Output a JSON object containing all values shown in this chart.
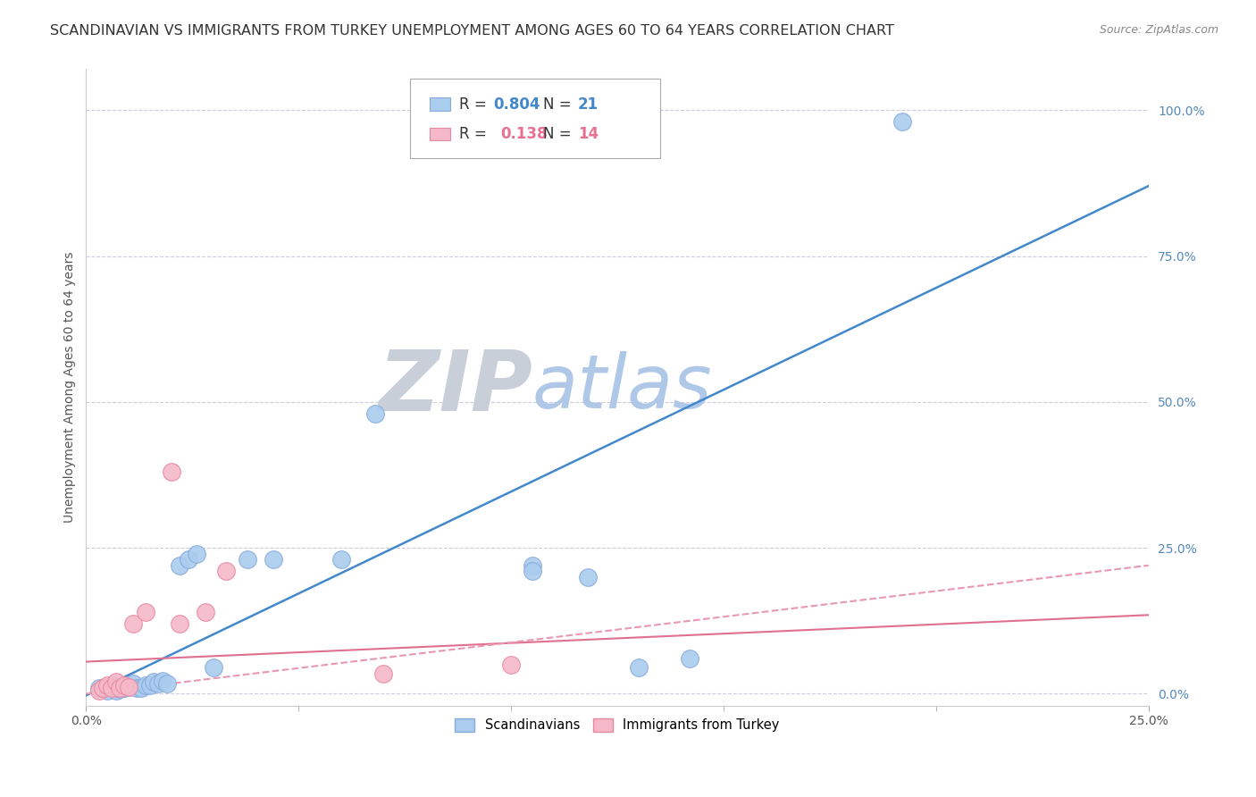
{
  "title": "SCANDINAVIAN VS IMMIGRANTS FROM TURKEY UNEMPLOYMENT AMONG AGES 60 TO 64 YEARS CORRELATION CHART",
  "source": "Source: ZipAtlas.com",
  "ylabel": "Unemployment Among Ages 60 to 64 years",
  "xlim": [
    0.0,
    0.25
  ],
  "ylim": [
    -0.02,
    1.07
  ],
  "xtick_positions": [
    0.0,
    0.25
  ],
  "xtick_labels": [
    "0.0%",
    "25.0%"
  ],
  "ytick_positions": [
    0.0,
    0.25,
    0.5,
    0.75,
    1.0
  ],
  "ytick_labels": [
    "0.0%",
    "25.0%",
    "50.0%",
    "75.0%",
    "100.0%"
  ],
  "legend_blue_r": "R = 0.804",
  "legend_blue_n": "N = 21",
  "legend_pink_r": "R =  0.138",
  "legend_pink_n": "N = 14",
  "blue_scatter_x": [
    0.003,
    0.005,
    0.006,
    0.007,
    0.008,
    0.009,
    0.01,
    0.011,
    0.012,
    0.013,
    0.014,
    0.015,
    0.016,
    0.017,
    0.018,
    0.019,
    0.022,
    0.024,
    0.026,
    0.068,
    0.105
  ],
  "blue_scatter_y": [
    0.01,
    0.005,
    0.015,
    0.005,
    0.008,
    0.01,
    0.012,
    0.018,
    0.01,
    0.01,
    0.015,
    0.015,
    0.02,
    0.018,
    0.022,
    0.017,
    0.22,
    0.23,
    0.24,
    0.48,
    0.22
  ],
  "blue_outlier_x": [
    0.192
  ],
  "blue_outlier_y": [
    0.98
  ],
  "blue_point2_x": [
    0.03
  ],
  "blue_point2_y": [
    0.045
  ],
  "blue_point3_x": [
    0.038
  ],
  "blue_point3_y": [
    0.23
  ],
  "blue_point4_x": [
    0.044
  ],
  "blue_point4_y": [
    0.23
  ],
  "blue_point5_x": [
    0.06
  ],
  "blue_point5_y": [
    0.23
  ],
  "blue_point6_x": [
    0.105
  ],
  "blue_point6_y": [
    0.21
  ],
  "blue_point7_x": [
    0.118
  ],
  "blue_point7_y": [
    0.2
  ],
  "blue_point8_x": [
    0.13
  ],
  "blue_point8_y": [
    0.045
  ],
  "blue_point9_x": [
    0.142
  ],
  "blue_point9_y": [
    0.06
  ],
  "pink_scatter_x": [
    0.003,
    0.004,
    0.005,
    0.006,
    0.007,
    0.008,
    0.009,
    0.01,
    0.011,
    0.014,
    0.022,
    0.033,
    0.07
  ],
  "pink_scatter_y": [
    0.005,
    0.01,
    0.015,
    0.01,
    0.02,
    0.01,
    0.015,
    0.012,
    0.12,
    0.14,
    0.12,
    0.21,
    0.035
  ],
  "pink_outlier_x": [
    0.02
  ],
  "pink_outlier_y": [
    0.38
  ],
  "pink_point2_x": [
    0.028
  ],
  "pink_point2_y": [
    0.14
  ],
  "pink_point3_x": [
    0.1
  ],
  "pink_point3_y": [
    0.05
  ],
  "blue_line_x": [
    -0.025,
    0.25
  ],
  "blue_line_y": [
    -0.09,
    0.87
  ],
  "pink_solid_line_x": [
    0.0,
    0.25
  ],
  "pink_solid_line_y": [
    0.055,
    0.135
  ],
  "pink_dash_line_x": [
    0.0,
    0.25
  ],
  "pink_dash_line_y": [
    0.0,
    0.22
  ],
  "scatter_blue_color": "#aaccee",
  "scatter_blue_edge": "#88aadd",
  "scatter_pink_color": "#f5b8c8",
  "scatter_pink_edge": "#e888a0",
  "line_blue_color": "#4488cc",
  "line_pink_solid_color": "#e07090",
  "line_pink_dash_color": "#e898b0",
  "watermark_zip_color": "#d0d8e8",
  "watermark_atlas_color": "#b8ccee",
  "grid_color": "#ccccdd",
  "bg_color": "#ffffff",
  "title_fontsize": 11.5,
  "source_fontsize": 9,
  "axis_label_fontsize": 10,
  "tick_fontsize": 10,
  "legend_fontsize": 12
}
